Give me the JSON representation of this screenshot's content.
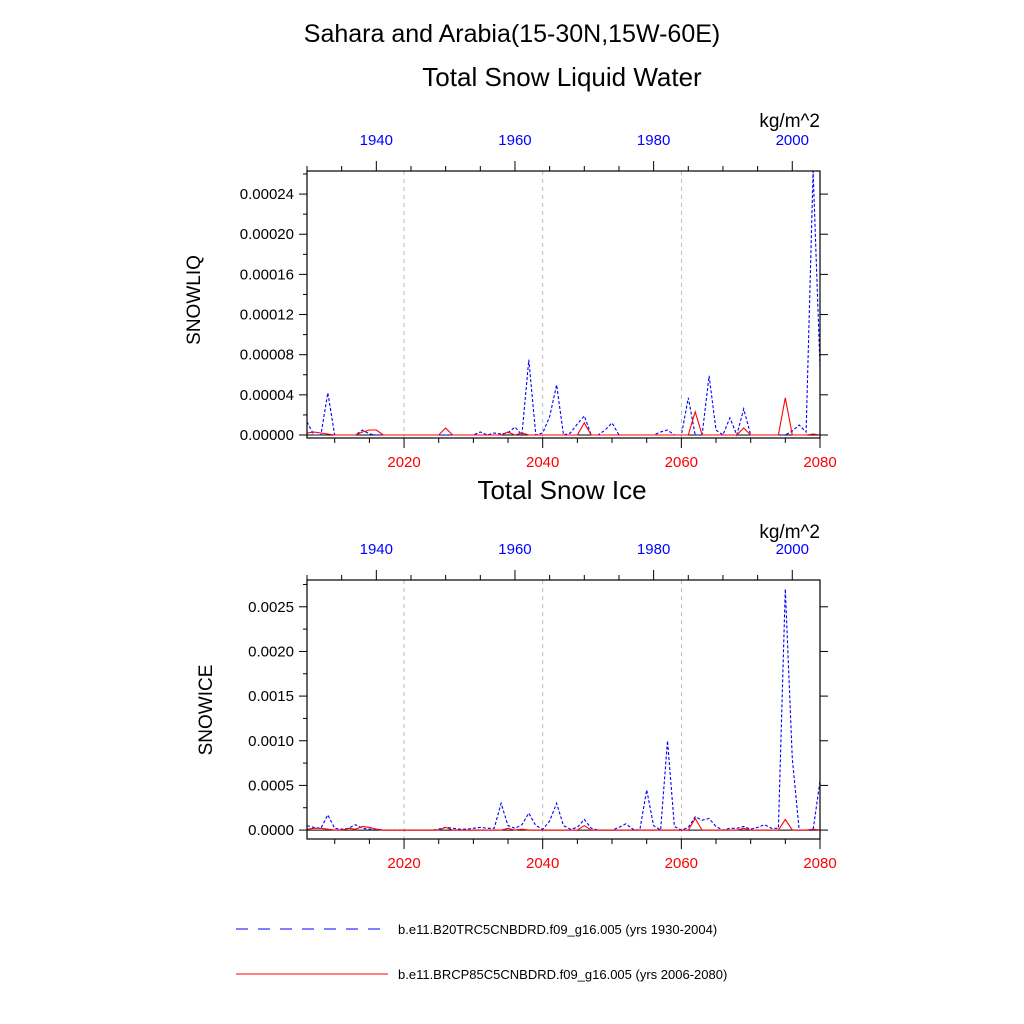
{
  "figure_title": "Sahara and Arabia(15-30N,15W-60E)",
  "legend": [
    {
      "label": "b.e11.B20TRC5CNBDRD.f09_g16.005 (yrs 1930-2004)",
      "color": "#0000ff",
      "style": "dashed"
    },
    {
      "label": "b.e11.BRCP85C5CNBDRD.f09_g16.005 (yrs 2006-2080)",
      "color": "#ff0000",
      "style": "solid"
    }
  ],
  "chart_data": [
    {
      "type": "line",
      "title": "Total Snow Liquid Water",
      "units": "kg/m^2",
      "ylabel": "SNOWLIQ",
      "ylim": [
        -3e-06,
        0.000263
      ],
      "yticks": [
        0,
        4e-05,
        8e-05,
        0.00012,
        0.00016,
        0.0002,
        0.00024
      ],
      "ytick_labels": [
        "0.00000",
        "0.00004",
        "0.00008",
        "0.00012",
        "0.00016",
        "0.00020",
        "0.00024"
      ],
      "bottom_xlim": [
        2006,
        2080
      ],
      "bottom_xticks": [
        2020,
        2040,
        2060,
        2080
      ],
      "bottom_xtick_labels": [
        "2020",
        "2040",
        "2060",
        "2080"
      ],
      "top_xlim": [
        1930,
        2004
      ],
      "top_xticks": [
        1940,
        1960,
        1980,
        2000
      ],
      "top_xtick_labels": [
        "1940",
        "1960",
        "1980",
        "2000"
      ],
      "grid": "vertical dashed at bottom major ticks",
      "series": [
        {
          "name": "b.e11.B20TRC5CNBDRD.f09_g16.005 (yrs 1930-2004)",
          "color": "#0000ff",
          "style": "dashed",
          "x": [
            1930,
            1931,
            1932,
            1933,
            1934,
            1935,
            1936,
            1937,
            1938,
            1939,
            1940,
            1941,
            1942,
            1943,
            1944,
            1945,
            1946,
            1947,
            1948,
            1949,
            1950,
            1951,
            1952,
            1953,
            1954,
            1955,
            1956,
            1957,
            1958,
            1959,
            1960,
            1961,
            1962,
            1963,
            1964,
            1965,
            1966,
            1967,
            1968,
            1969,
            1970,
            1971,
            1972,
            1973,
            1974,
            1975,
            1976,
            1977,
            1978,
            1979,
            1980,
            1981,
            1982,
            1983,
            1984,
            1985,
            1986,
            1987,
            1988,
            1989,
            1990,
            1991,
            1992,
            1993,
            1994,
            1995,
            1996,
            1997,
            1998,
            1999,
            2000,
            2001,
            2002,
            2003,
            2004
          ],
          "y": [
            1.3e-05,
            0,
            0,
            4.2e-05,
            0,
            0,
            0,
            0,
            5e-06,
            1e-06,
            0,
            0,
            0,
            0,
            0,
            0,
            0,
            0,
            0,
            0,
            0,
            0,
            0,
            0,
            0,
            3e-06,
            0,
            2e-06,
            1e-06,
            2e-06,
            8e-06,
            0,
            7.5e-05,
            0,
            2e-06,
            1.8e-05,
            5e-05,
            0,
            2e-06,
            1.1e-05,
            1.9e-05,
            0,
            0,
            5e-06,
            1.2e-05,
            0,
            0,
            0,
            0,
            0,
            0,
            3e-06,
            5e-06,
            0,
            0,
            3.7e-05,
            0,
            0,
            5.9e-05,
            5e-06,
            0,
            1.7e-05,
            0,
            2.6e-05,
            0,
            0,
            0,
            0,
            0,
            0,
            4e-06,
            1e-05,
            3e-06,
            0.000263,
            6.8e-05
          ]
        },
        {
          "name": "b.e11.BRCP85C5CNBDRD.f09_g16.005 (yrs 2006-2080)",
          "color": "#ff0000",
          "style": "solid",
          "x": [
            2006,
            2007,
            2008,
            2009,
            2010,
            2011,
            2012,
            2013,
            2014,
            2015,
            2016,
            2017,
            2018,
            2019,
            2020,
            2021,
            2022,
            2023,
            2024,
            2025,
            2026,
            2027,
            2028,
            2029,
            2030,
            2031,
            2032,
            2033,
            2034,
            2035,
            2036,
            2037,
            2038,
            2039,
            2040,
            2041,
            2042,
            2043,
            2044,
            2045,
            2046,
            2047,
            2048,
            2049,
            2050,
            2051,
            2052,
            2053,
            2054,
            2055,
            2056,
            2057,
            2058,
            2059,
            2060,
            2061,
            2062,
            2063,
            2064,
            2065,
            2066,
            2067,
            2068,
            2069,
            2070,
            2071,
            2072,
            2073,
            2074,
            2075,
            2076,
            2077,
            2078,
            2079,
            2080
          ],
          "y": [
            2e-06,
            3e-06,
            2e-06,
            1e-06,
            0,
            0,
            0,
            0,
            3e-06,
            5e-06,
            5e-06,
            0,
            0,
            0,
            0,
            0,
            0,
            0,
            0,
            0,
            7e-06,
            0,
            0,
            0,
            0,
            0,
            0,
            0,
            0,
            3e-06,
            0,
            2e-06,
            0,
            0,
            0,
            0,
            0,
            0,
            0,
            0,
            1.2e-05,
            0,
            0,
            0,
            0,
            0,
            0,
            0,
            0,
            0,
            0,
            0,
            0,
            0,
            0,
            0,
            2.3e-05,
            0,
            0,
            0,
            0,
            0,
            0,
            7e-06,
            0,
            0,
            0,
            0,
            0,
            3.7e-05,
            0,
            0,
            0,
            1e-06,
            0
          ]
        }
      ]
    },
    {
      "type": "line",
      "title": "Total Snow Ice",
      "units": "kg/m^2",
      "ylabel": "SNOWICE",
      "ylim": [
        -0.0001,
        0.0028
      ],
      "yticks": [
        0,
        0.0005,
        0.001,
        0.0015,
        0.002,
        0.0025
      ],
      "ytick_labels": [
        "0.0000",
        "0.0005",
        "0.0010",
        "0.0015",
        "0.0020",
        "0.0025"
      ],
      "bottom_xlim": [
        2006,
        2080
      ],
      "bottom_xticks": [
        2020,
        2040,
        2060,
        2080
      ],
      "bottom_xtick_labels": [
        "2020",
        "2040",
        "2060",
        "2080"
      ],
      "top_xlim": [
        1930,
        2004
      ],
      "top_xticks": [
        1940,
        1960,
        1980,
        2000
      ],
      "top_xtick_labels": [
        "1940",
        "1960",
        "1980",
        "2000"
      ],
      "grid": "vertical dashed at bottom major ticks",
      "series": [
        {
          "name": "b.e11.B20TRC5CNBDRD.f09_g16.005 (yrs 1930-2004)",
          "color": "#0000ff",
          "style": "dashed",
          "x": [
            1930,
            1931,
            1932,
            1933,
            1934,
            1935,
            1936,
            1937,
            1938,
            1939,
            1940,
            1941,
            1942,
            1943,
            1944,
            1945,
            1946,
            1947,
            1948,
            1949,
            1950,
            1951,
            1952,
            1953,
            1954,
            1955,
            1956,
            1957,
            1958,
            1959,
            1960,
            1961,
            1962,
            1963,
            1964,
            1965,
            1966,
            1967,
            1968,
            1969,
            1970,
            1971,
            1972,
            1973,
            1974,
            1975,
            1976,
            1977,
            1978,
            1979,
            1980,
            1981,
            1982,
            1983,
            1984,
            1985,
            1986,
            1987,
            1988,
            1989,
            1990,
            1991,
            1992,
            1993,
            1994,
            1995,
            1996,
            1997,
            1998,
            1999,
            2000,
            2001,
            2002,
            2003,
            2004
          ],
          "y": [
            5e-05,
            3e-05,
            2e-05,
            0.00017,
            2e-05,
            1e-05,
            2e-05,
            6e-05,
            2e-05,
            1e-05,
            1e-05,
            0,
            0,
            0,
            0,
            0,
            0,
            0,
            0,
            1e-05,
            3e-05,
            2e-05,
            1e-05,
            1e-05,
            2e-05,
            3e-05,
            2e-05,
            2e-05,
            0.0003,
            5e-05,
            2e-05,
            6e-05,
            0.00019,
            5e-05,
            1e-05,
            0.0001,
            0.0003,
            5e-05,
            1e-05,
            3e-05,
            0.00012,
            2e-05,
            0,
            0,
            0,
            3e-05,
            7e-05,
            1e-05,
            0,
            0.00045,
            5e-05,
            0,
            0.001,
            4e-05,
            0,
            3e-05,
            0.00015,
            0.00011,
            0.00013,
            4e-05,
            0,
            2e-05,
            2e-05,
            4e-05,
            1e-05,
            3e-05,
            6e-05,
            2e-05,
            2e-05,
            0.0027,
            0.0008,
            0,
            0,
            0,
            0.00055
          ]
        },
        {
          "name": "b.e11.BRCP85C5CNBDRD.f09_g16.005 (yrs 2006-2080)",
          "color": "#ff0000",
          "style": "solid",
          "x": [
            2006,
            2007,
            2008,
            2009,
            2010,
            2011,
            2012,
            2013,
            2014,
            2015,
            2016,
            2017,
            2018,
            2019,
            2020,
            2021,
            2022,
            2023,
            2024,
            2025,
            2026,
            2027,
            2028,
            2029,
            2030,
            2031,
            2032,
            2033,
            2034,
            2035,
            2036,
            2037,
            2038,
            2039,
            2040,
            2041,
            2042,
            2043,
            2044,
            2045,
            2046,
            2047,
            2048,
            2049,
            2050,
            2051,
            2052,
            2053,
            2054,
            2055,
            2056,
            2057,
            2058,
            2059,
            2060,
            2061,
            2062,
            2063,
            2064,
            2065,
            2066,
            2067,
            2068,
            2069,
            2070,
            2071,
            2072,
            2073,
            2074,
            2075,
            2076,
            2077,
            2078,
            2079,
            2080
          ],
          "y": [
            1e-05,
            2e-05,
            2e-05,
            1e-05,
            0,
            0,
            2e-05,
            1e-05,
            4e-05,
            3e-05,
            1e-05,
            0,
            0,
            0,
            0,
            0,
            0,
            0,
            0,
            0,
            3e-05,
            0,
            0,
            0,
            0,
            0,
            0,
            0,
            0,
            2e-05,
            0,
            1e-05,
            0,
            0,
            0,
            0,
            0,
            0,
            0,
            0,
            5e-05,
            0,
            0,
            0,
            0,
            0,
            0,
            0,
            0,
            0,
            0,
            0,
            0,
            0,
            0,
            0,
            0.00013,
            0,
            0,
            0,
            0,
            0,
            0,
            2e-05,
            0,
            0,
            0,
            0,
            0,
            0.00012,
            0,
            0,
            0,
            1e-05,
            0
          ]
        }
      ]
    }
  ]
}
